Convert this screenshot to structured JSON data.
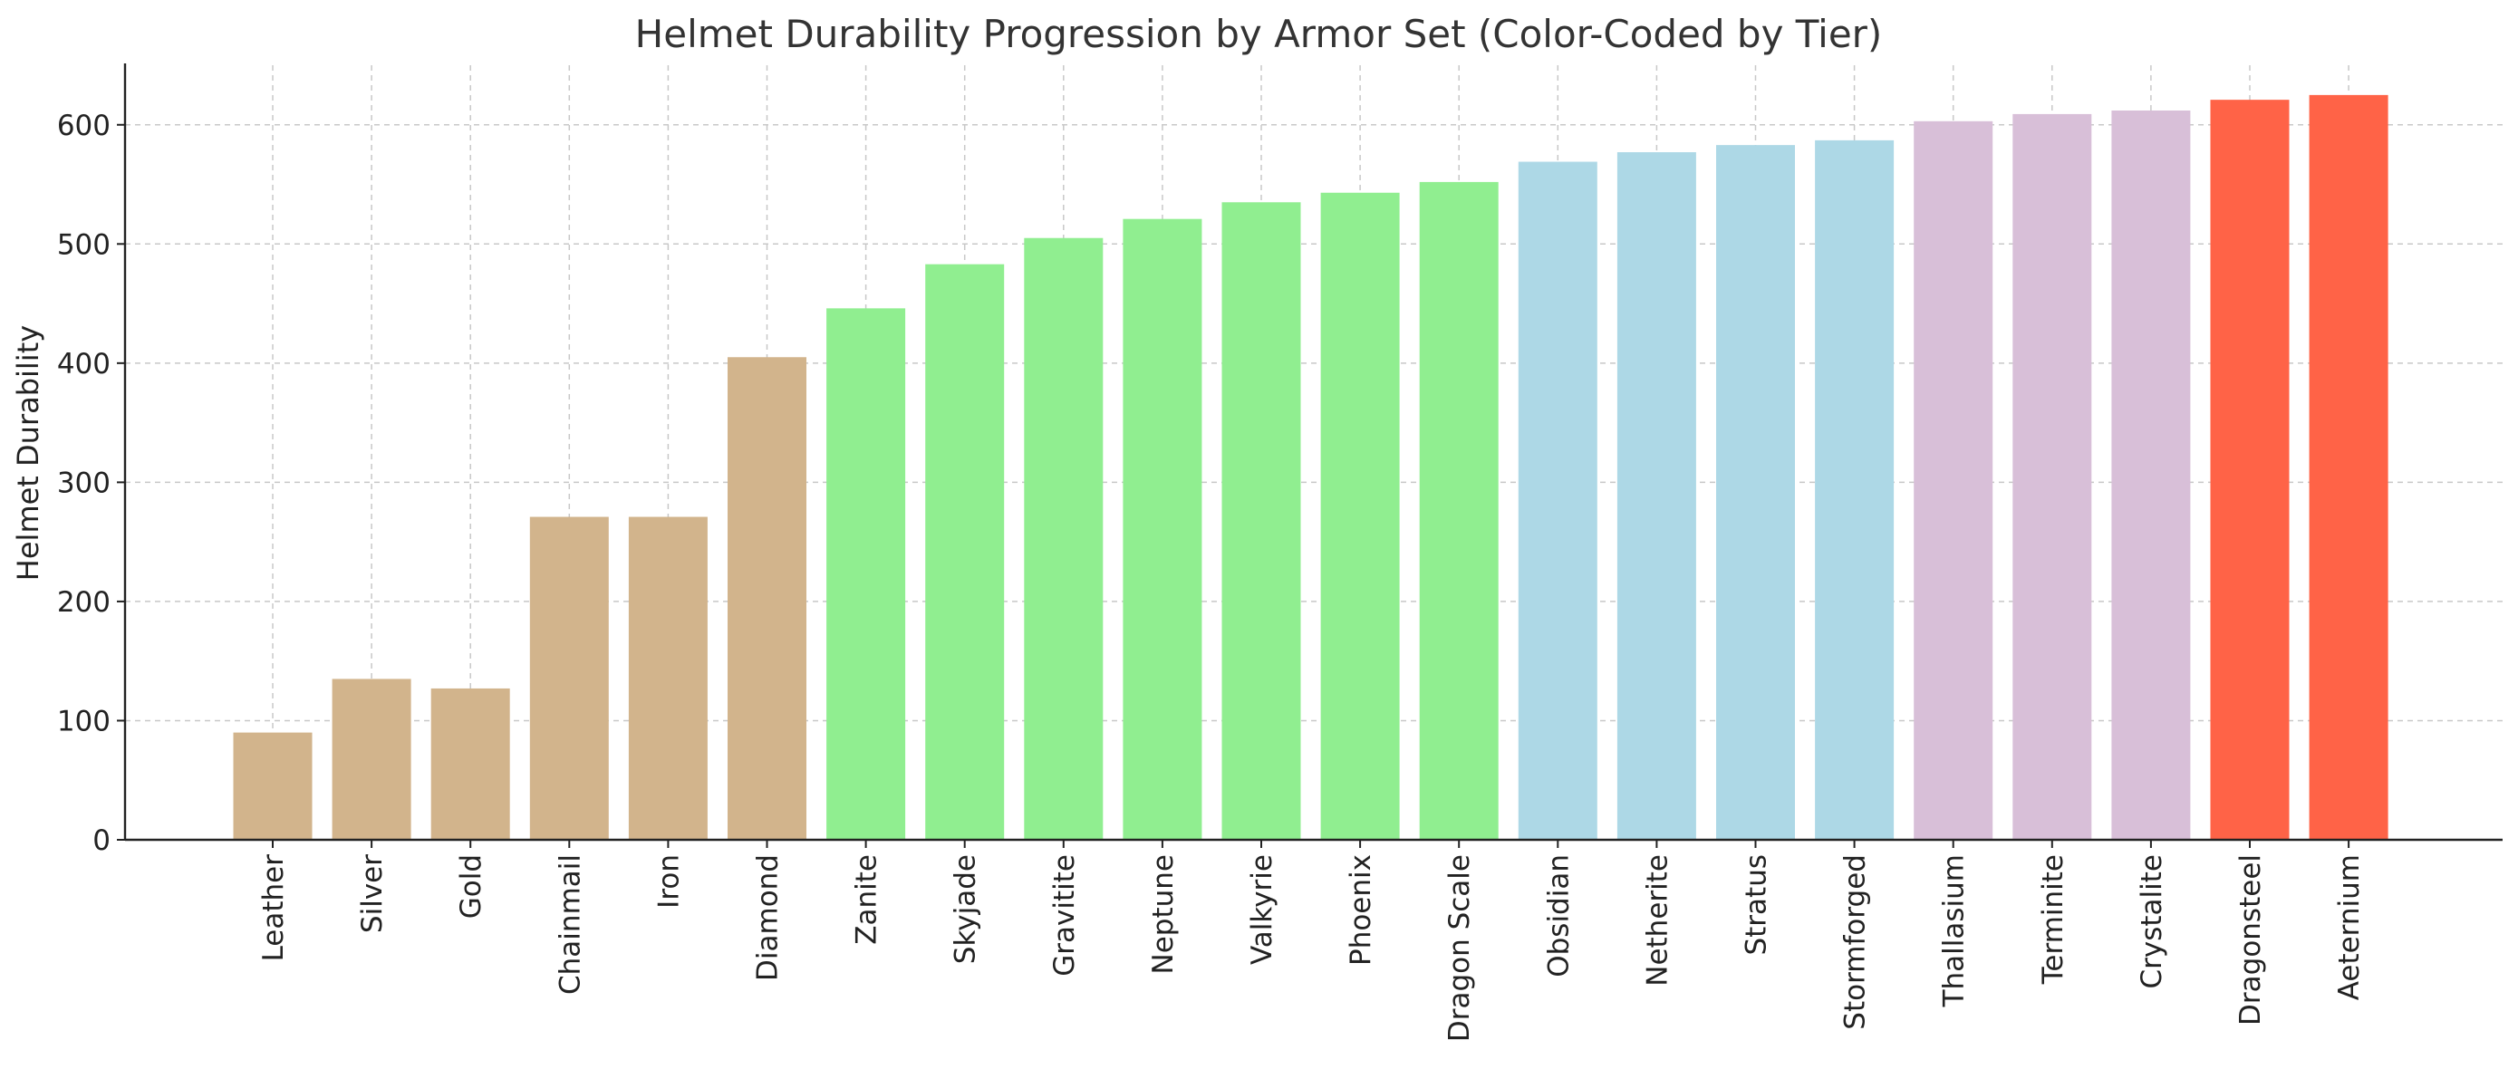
{
  "chart_data": {
    "type": "bar",
    "title": "Helmet Durability Progression by Armor Set (Color-Coded by Tier)",
    "xlabel": "",
    "ylabel": "Helmet Durability",
    "ylim": [
      0,
      650
    ],
    "yticks": [
      0,
      100,
      200,
      300,
      400,
      500,
      600
    ],
    "grid": true,
    "categories": [
      "Leather",
      "Silver",
      "Gold",
      "Chainmail",
      "Iron",
      "Diamond",
      "Zanite",
      "Skyjade",
      "Gravitite",
      "Neptune",
      "Valkyrie",
      "Phoenix",
      "Dragon Scale",
      "Obsidian",
      "Netherite",
      "Stratus",
      "Stormforged",
      "Thallasium",
      "Terminite",
      "Crystalite",
      "Dragonsteel",
      "Aeternium"
    ],
    "values": [
      90,
      135,
      127,
      271,
      271,
      405,
      446,
      483,
      505,
      521,
      535,
      543,
      552,
      569,
      577,
      583,
      587,
      603,
      609,
      612,
      621,
      625
    ],
    "colors": [
      "#d2b48c",
      "#d2b48c",
      "#d2b48c",
      "#d2b48c",
      "#d2b48c",
      "#d2b48c",
      "#90ee90",
      "#90ee90",
      "#90ee90",
      "#90ee90",
      "#90ee90",
      "#90ee90",
      "#90ee90",
      "#add8e6",
      "#add8e6",
      "#add8e6",
      "#add8e6",
      "#d8bfd8",
      "#d8bfd8",
      "#d8bfd8",
      "#ff6347",
      "#ff6347"
    ]
  }
}
